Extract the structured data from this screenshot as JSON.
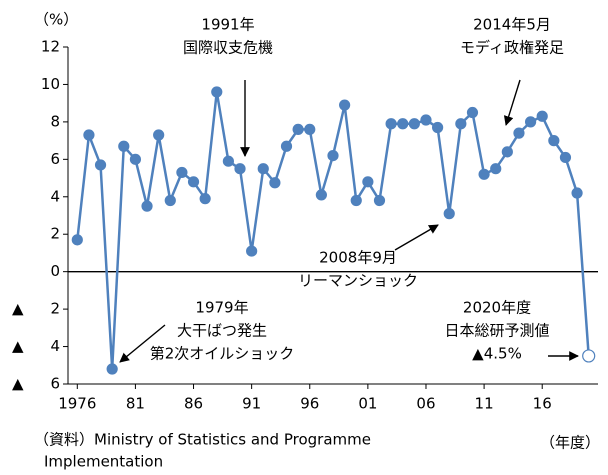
{
  "chart_data": {
    "type": "line",
    "y_unit": "（%）",
    "x_unit": "（年度）",
    "source": [
      "（資料）Ministry of Statistics and Programme",
      "Implementation"
    ],
    "x": [
      1976,
      1977,
      1978,
      1979,
      1980,
      1981,
      1982,
      1983,
      1984,
      1985,
      1986,
      1987,
      1988,
      1989,
      1990,
      1991,
      1992,
      1993,
      1994,
      1995,
      1996,
      1997,
      1998,
      1999,
      2000,
      2001,
      2002,
      2003,
      2004,
      2005,
      2006,
      2007,
      2008,
      2009,
      2010,
      2011,
      2012,
      2013,
      2014,
      2015,
      2016,
      2017,
      2018,
      2019,
      2020
    ],
    "series": [
      {
        "color": "#4f81bd",
        "values": [
          1.7,
          7.3,
          5.7,
          -5.2,
          6.7,
          6.0,
          3.5,
          7.3,
          3.8,
          5.3,
          4.8,
          3.9,
          9.6,
          5.9,
          5.5,
          1.1,
          5.5,
          4.75,
          6.7,
          7.6,
          7.6,
          4.1,
          6.2,
          8.9,
          3.8,
          4.8,
          3.8,
          7.9,
          7.9,
          7.9,
          8.1,
          7.7,
          3.1,
          7.9,
          8.5,
          5.2,
          5.5,
          6.4,
          7.4,
          8.0,
          8.3,
          7.0,
          6.1,
          4.2,
          -4.5
        ]
      }
    ],
    "forecast_from": 2020,
    "xlim": [
      1975.2,
      2020.8
    ],
    "xticks": [
      1976,
      {
        "value": 1981,
        "label": "81"
      },
      {
        "value": 1986,
        "label": "86"
      },
      {
        "value": 1991,
        "label": "91"
      },
      {
        "value": 1996,
        "label": "96"
      },
      {
        "value": 2001,
        "label": "01"
      },
      {
        "value": 2006,
        "label": "06"
      },
      {
        "value": 2011,
        "label": "11"
      },
      {
        "value": 2016,
        "label": "16"
      }
    ],
    "ylim": [
      -6,
      12
    ],
    "yticks": [
      12,
      10,
      8,
      6,
      4,
      2,
      0,
      {
        "value": -2,
        "label": "▲ 2"
      },
      {
        "value": -4,
        "label": "▲ 4"
      },
      {
        "value": -6,
        "label": "▲ 6"
      }
    ],
    "annotations": [
      [
        "1991年",
        "国際収支危機"
      ],
      [
        "2014年5月",
        "モディ政権発足"
      ],
      [
        "2008年9月",
        "リーマンショック"
      ],
      [
        "1979年",
        "大干ばつ発生",
        "第2次オイルショック"
      ],
      [
        "2020年度",
        "日本総研予測値",
        "▲4.5%"
      ]
    ]
  }
}
